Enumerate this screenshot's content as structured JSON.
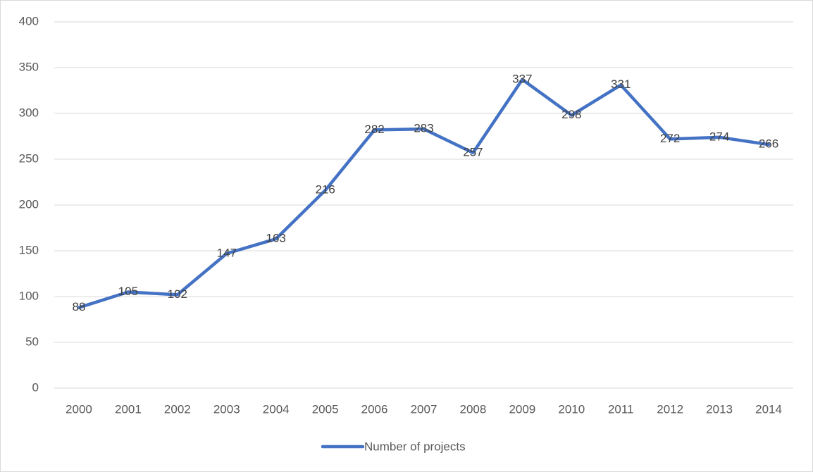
{
  "chart_data": {
    "type": "line",
    "categories": [
      "2000",
      "2001",
      "2002",
      "2003",
      "2004",
      "2005",
      "2006",
      "2007",
      "2008",
      "2009",
      "2010",
      "2011",
      "2012",
      "2013",
      "2014"
    ],
    "series": [
      {
        "name": "Number of projects",
        "color": "#4472c4",
        "values": [
          88,
          105,
          102,
          147,
          163,
          216,
          282,
          283,
          257,
          337,
          298,
          331,
          272,
          274,
          266
        ]
      }
    ],
    "ylim": [
      0,
      400
    ],
    "yticks": [
      0,
      50,
      100,
      150,
      200,
      250,
      300,
      350,
      400
    ],
    "grid": true,
    "legend": "bottom",
    "data_labels": true
  }
}
